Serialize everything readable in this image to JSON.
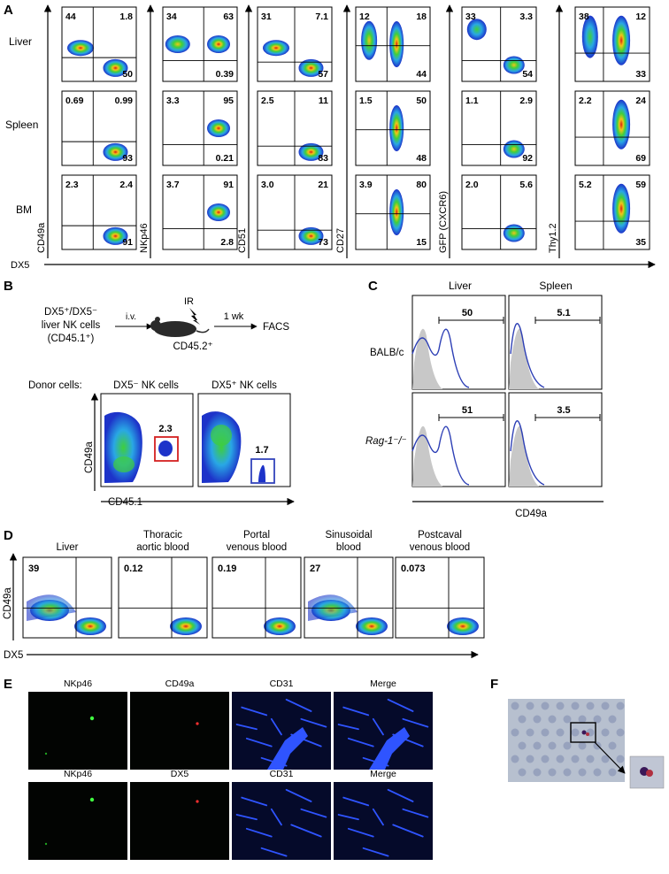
{
  "panels": {
    "A": {
      "letter": "A",
      "row_labels": [
        "Liver",
        "Spleen",
        "BM"
      ],
      "x_axis_label": "DX5",
      "markers": [
        {
          "label": "CD49a",
          "values": [
            [
              "44",
              "1.8",
              "50"
            ],
            [
              "0.69",
              "0.99",
              "93"
            ],
            [
              "2.3",
              "2.4",
              "91"
            ]
          ]
        },
        {
          "label": "NKp46",
          "values": [
            [
              "34",
              "63",
              "0.39"
            ],
            [
              "3.3",
              "95",
              "0.21"
            ],
            [
              "3.7",
              "91",
              "2.8"
            ]
          ]
        },
        {
          "label": "CD51",
          "values": [
            [
              "31",
              "7.1",
              "57"
            ],
            [
              "2.5",
              "11",
              "83"
            ],
            [
              "3.0",
              "21",
              "73"
            ]
          ]
        },
        {
          "label": "CD27",
          "values": [
            [
              "12",
              "18",
              "44"
            ],
            [
              "1.5",
              "50",
              "48"
            ],
            [
              "3.9",
              "80",
              "15"
            ]
          ]
        },
        {
          "label": "GFP (CXCR6)",
          "values": [
            [
              "33",
              "3.3",
              "54"
            ],
            [
              "1.1",
              "2.9",
              "92"
            ],
            [
              "2.0",
              "5.6",
              ""
            ]
          ]
        },
        {
          "label": "Thy1.2",
          "values": [
            [
              "38",
              "12",
              "33"
            ],
            [
              "2.2",
              "24",
              "69"
            ],
            [
              "5.2",
              "59",
              "35"
            ]
          ]
        }
      ]
    },
    "B": {
      "letter": "B",
      "donor_text": [
        "DX5⁺/DX5⁻",
        "liver NK cells",
        "(CD45.1⁺)"
      ],
      "route": "i.v.",
      "ir": "IR",
      "recipient": "CD45.2⁺",
      "time": "1 wk",
      "readout": "FACS",
      "donor_cells_label": "Donor cells:",
      "plot_titles": [
        "DX5⁻ NK cells",
        "DX5⁺ NK cells"
      ],
      "plot_values": [
        "2.3",
        "1.7"
      ],
      "y_axis_label": "CD49a",
      "x_axis_label": "CD45.1"
    },
    "C": {
      "letter": "C",
      "col_labels": [
        "Liver",
        "Spleen"
      ],
      "row_labels": [
        "BALB/c",
        "Rag-1⁻/⁻"
      ],
      "values": [
        [
          "50",
          "5.1"
        ],
        [
          "51",
          "3.5"
        ]
      ],
      "x_axis_label": "CD49a"
    },
    "D": {
      "letter": "D",
      "titles": [
        [
          "Liver"
        ],
        [
          "Thoracic",
          "aortic blood"
        ],
        [
          "Portal",
          "venous blood"
        ],
        [
          "Sinusoidal",
          "blood"
        ],
        [
          "Postcaval",
          "venous blood"
        ]
      ],
      "values": [
        "39",
        "0.12",
        "0.19",
        "27",
        "0.073"
      ],
      "y_axis_label": "CD49a",
      "x_axis_label": "DX5"
    },
    "E": {
      "letter": "E",
      "row1_labels": [
        "NKp46",
        "CD49a",
        "CD31",
        "Merge"
      ],
      "row2_labels": [
        "NKp46",
        "DX5",
        "CD31",
        "Merge"
      ]
    },
    "F": {
      "letter": "F"
    }
  },
  "colors": {
    "blue_line": "#2d3fb5",
    "gate_red": "#d42020",
    "gate_blue": "#3344bb",
    "iso_fill": "#c8c8c8"
  }
}
